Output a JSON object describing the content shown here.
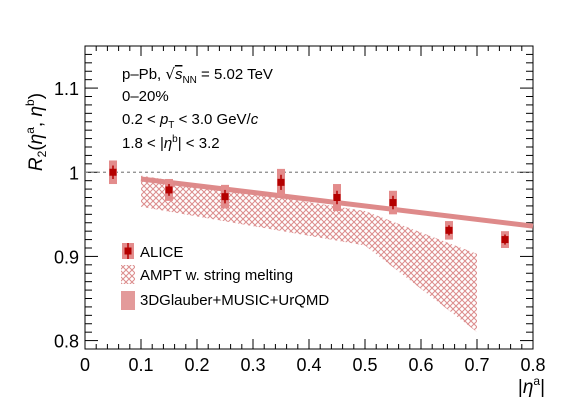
{
  "chart_data": {
    "type": "scatter",
    "xlabel": "|η^a|",
    "ylabel": "R2(η^a, η^b)",
    "xlim": [
      0,
      0.8
    ],
    "ylim": [
      0.79,
      1.15
    ],
    "x_ticks": [
      "0",
      "0.1",
      "0.2",
      "0.3",
      "0.4",
      "0.5",
      "0.6",
      "0.7",
      "0.8"
    ],
    "y_ticks": [
      "0.8",
      "0.9",
      "1",
      "1.1"
    ],
    "reference_line": 1,
    "annotations": [
      "p–Pb, √sNN = 5.02 TeV",
      "0–20%",
      "0.2 < pT < 3.0 GeV/c",
      "1.8 < |η^b| < 3.2"
    ],
    "series": [
      {
        "name": "ALICE",
        "color": "#b40000",
        "syst_color": "#e38c8c",
        "x": [
          0.05,
          0.15,
          0.25,
          0.35,
          0.45,
          0.55,
          0.65,
          0.75
        ],
        "y": [
          1.0,
          0.979,
          0.971,
          0.988,
          0.97,
          0.964,
          0.931,
          0.92
        ],
        "stat_err": [
          0.008,
          0.007,
          0.008,
          0.009,
          0.008,
          0.008,
          0.006,
          0.006
        ],
        "syst_err": [
          0.014,
          0.013,
          0.014,
          0.016,
          0.016,
          0.014,
          0.011,
          0.01
        ]
      },
      {
        "name": "AMPT w. string melting",
        "color": "#e39a9a",
        "x": [
          0.1,
          0.5,
          0.7
        ],
        "y_upper": [
          0.996,
          0.954,
          0.903
        ],
        "y_lower": [
          0.959,
          0.913,
          0.81
        ]
      },
      {
        "name": "3DGlauber+MUSIC+UrQMD",
        "color": "#de8a8a",
        "x": [
          0.1,
          0.8
        ],
        "y": [
          0.992,
          0.936
        ]
      }
    ]
  }
}
